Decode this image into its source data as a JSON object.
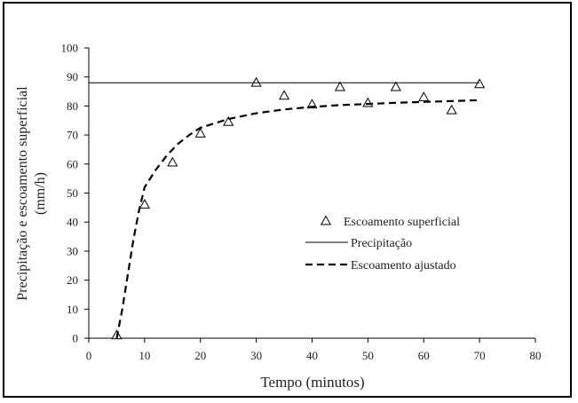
{
  "chart_data": {
    "type": "line",
    "xlabel": "Tempo  (minutos)",
    "ylabel_line1": "Precipitação e escoamento superficial",
    "ylabel_line2": "(mm/h)",
    "xlim": [
      0,
      80
    ],
    "ylim": [
      0,
      100
    ],
    "x_ticks": [
      0,
      10,
      20,
      30,
      40,
      50,
      60,
      70,
      80
    ],
    "y_ticks": [
      0,
      10,
      20,
      30,
      40,
      50,
      60,
      70,
      80,
      90,
      100
    ],
    "grid": false,
    "legend_position": "center-right",
    "series": [
      {
        "name": "Escoamento superficial",
        "kind": "scatter",
        "marker": "triangle",
        "x": [
          5,
          10,
          15,
          20,
          25,
          30,
          35,
          40,
          45,
          50,
          55,
          60,
          65,
          70
        ],
        "y": [
          1,
          46,
          60.5,
          70.5,
          74.5,
          88,
          83.5,
          80.5,
          86.5,
          81,
          86.5,
          83,
          78.5,
          87.5
        ]
      },
      {
        "name": "Precipitação",
        "kind": "line",
        "style": "solid",
        "x": [
          0,
          70
        ],
        "y": [
          88,
          88
        ]
      },
      {
        "name": "Escoamento ajustado",
        "kind": "line",
        "style": "dashed",
        "x": [
          5,
          6,
          7,
          8,
          9,
          10,
          12,
          14,
          16,
          18,
          20,
          25,
          30,
          35,
          40,
          45,
          50,
          55,
          60,
          65,
          70
        ],
        "y": [
          0,
          10,
          22,
          34,
          44,
          52,
          58,
          63,
          67,
          70,
          72.5,
          75.5,
          77.5,
          78.8,
          79.7,
          80.3,
          80.7,
          81.1,
          81.4,
          81.7,
          82
        ]
      }
    ],
    "colors": {
      "axis": "#000000",
      "line": "#000000",
      "text": "#222222"
    }
  }
}
